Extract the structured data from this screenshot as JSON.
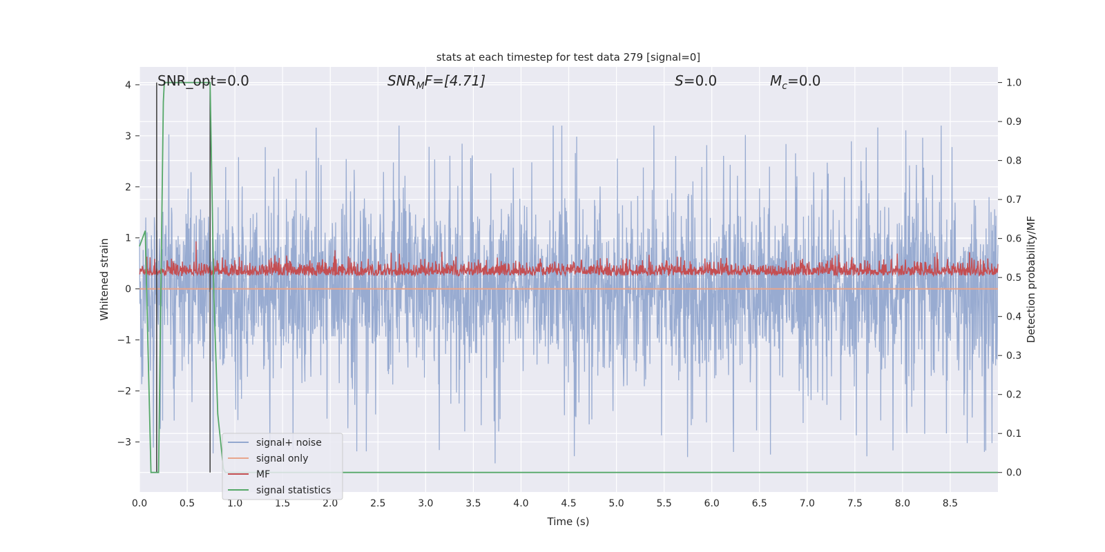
{
  "chart_data": {
    "type": "line",
    "title": "stats at each timestep for test data 279 [signal=0]",
    "xlabel": "Time (s)",
    "ylabel": "Whitened strain",
    "y2label": "Detection probability/MF",
    "xlim": [
      0.0,
      9.0
    ],
    "ylim": [
      -3.98,
      4.35
    ],
    "y2lim": [
      -0.05,
      1.04
    ],
    "x_ticks": [
      "0.0",
      "0.5",
      "1.0",
      "1.5",
      "2.0",
      "2.5",
      "3.0",
      "3.5",
      "4.0",
      "4.5",
      "5.0",
      "5.5",
      "6.0",
      "6.5",
      "7.0",
      "7.5",
      "8.0",
      "8.5"
    ],
    "y_ticks": [
      "4",
      "3",
      "2",
      "1",
      "0",
      "−1",
      "−2",
      "−3"
    ],
    "y2_ticks": [
      "1.0",
      "0.9",
      "0.8",
      "0.7",
      "0.6",
      "0.5",
      "0.4",
      "0.3",
      "0.2",
      "0.1",
      "0.0"
    ],
    "grid": true,
    "legend_position": "lower-left",
    "annotations": {
      "snr_opt": "SNR_opt=0.0",
      "snr_mf_main": "SNR",
      "snr_mf_sub": "M",
      "snr_mf_rest": "F=[4.71]",
      "s_main": "S",
      "s_rest": "=0.0",
      "mc_main": "M",
      "mc_sub": "c",
      "mc_rest": "=0.0"
    },
    "series": [
      {
        "name": "signal+ noise",
        "color": "#93a8cf",
        "axis": "left",
        "description_values": "noise, mean 0, amplitude about ±2 (peaks ±3.2)"
      },
      {
        "name": "signal only",
        "color": "#e8a58b",
        "axis": "left",
        "values_constant": 0.0
      },
      {
        "name": "MF",
        "color": "#c44e52",
        "axis": "right",
        "description_values": "around 0.52, range 0.50–0.59"
      },
      {
        "name": "signal statistics",
        "color": "#55a868",
        "axis": "right",
        "x": [
          0.0,
          0.06,
          0.12,
          0.2,
          0.25,
          0.26,
          0.3,
          0.5,
          0.74,
          0.78,
          0.82,
          0.88,
          0.9,
          9.0
        ],
        "values": [
          0.58,
          0.62,
          0.0,
          0.0,
          0.95,
          1.0,
          1.0,
          1.0,
          1.0,
          0.45,
          0.15,
          0.01,
          0.0,
          0.0
        ]
      }
    ],
    "markers_x": [
      0.18,
      0.74
    ],
    "marker_color": "#444444"
  }
}
